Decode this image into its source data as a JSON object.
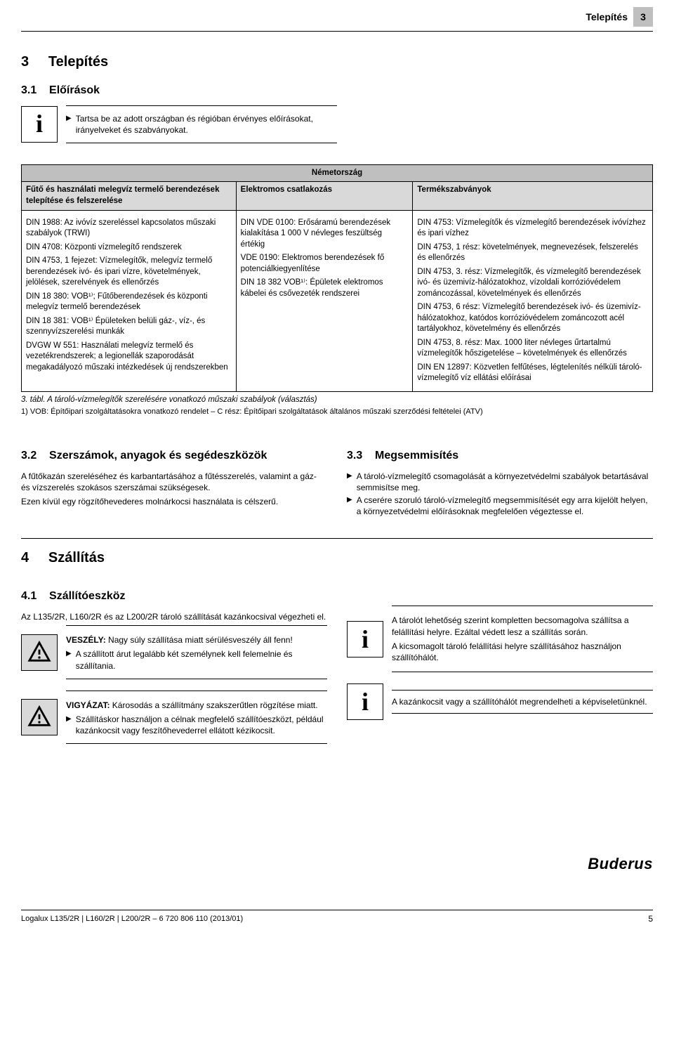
{
  "header": {
    "category": "Telepítés",
    "page": "3"
  },
  "section_3": {
    "num": "3",
    "title": "Telepítés"
  },
  "section_3_1": {
    "num": "3.1",
    "title": "Előírások",
    "info": "Tartsa be az adott országban és régióban érvényes előírásokat, irányelveket és szabványokat."
  },
  "table": {
    "country": "Németország",
    "columns": [
      "Fűtő és használati melegvíz termelő berendezések telepítése és felszerelése",
      "Elektromos csatlakozás",
      "Termékszabványok"
    ],
    "row1_col1": "DIN 1988: Az ivóvíz szereléssel kapcsolatos műszaki szabályok (TRWI)\nDIN 4708: Központi vízmelegítő rendszerek\nDIN 4753, 1 fejezet: Vízmelegítők, melegvíz termelő berendezések ivó- és ipari vízre, követelmények, jelölések, szerelvények és ellenőrzés\nDIN 18 380: VOB¹⁾; Fűtőberendezések és központi melegvíz termelő berendezések\nDIN 18 381: VOB¹⁾ Épületeken belüli gáz-, víz-, és szennyvízszerelési munkák\nDVGW W 551: Használati melegvíz termelő és vezetékrendszerek; a legionellák szaporodását megakadályozó műszaki intézkedések új rendszerekben",
    "row1_col2": "DIN VDE 0100: Erősáramú berendezések kialakítása 1 000 V névleges feszültség értékig\nVDE 0190: Elektromos berendezések fő potenciálkiegyenlítése\nDIN 18 382 VOB¹⁾: Épületek elektromos kábelei és csővezeték rendszerei",
    "row1_col3": "DIN 4753: Vízmelegítők és vízmelegítő berendezések ivóvízhez és ipari vízhez\nDIN 4753, 1 rész: követelmények, megnevezések, felszerelés és ellenőrzés\nDIN 4753, 3. rész: Vízmelegítők, és vízmelegítő berendezések ivó- és üzemivíz-hálózatokhoz, vízoldali korrózióvédelem zománcozással, követelmények és ellenőrzés\nDIN 4753, 6 rész: Vízmelegítő berendezések ivó- és üzemivíz-hálózatokhoz, katódos korrózióvédelem zománcozott acél tartályokhoz, követelmény és ellenőrzés\nDIN 4753, 8. rész: Max. 1000 liter névleges űrtartalmú vízmelegítők hőszigetelése – követelmények és ellenőrzés\nDIN EN 12897: Közvetlen felfűtéses, légtelenítés nélküli tároló-vízmelegítő víz ellátási előírásai",
    "caption": "3. tábl.  A tároló-vízmelegítők szerelésére vonatkozó műszaki szabályok (választás)",
    "footnote": "1) VOB: Építőipari szolgáltatásokra vonatkozó rendelet – C rész: Építőipari szolgáltatások általános műszaki szerződési feltételei (ATV)"
  },
  "section_3_2": {
    "num": "3.2",
    "title": "Szerszámok, anyagok és segédeszközök",
    "p1": "A fűtőkazán szereléséhez és karbantartásához a fűtésszerelés, valamint a gáz- és vízszerelés szokásos szerszámai szükségesek.",
    "p2": "Ezen kívül egy rögzítőhevederes molnárkocsi használata is célszerű."
  },
  "section_3_3": {
    "num": "3.3",
    "title": "Megsemmisítés",
    "b1": "A tároló-vízmelegítő csomagolását a környezetvédelmi szabályok betartásával semmisítse meg.",
    "b2": "A cserére szoruló tároló-vízmelegítő megsemmisítését egy arra kijelölt helyen, a környezetvédelmi előírásoknak megfelelően végeztesse el."
  },
  "section_4": {
    "num": "4",
    "title": "Szállítás"
  },
  "section_4_1": {
    "num": "4.1",
    "title": "Szállítóeszköz",
    "intro": "Az L135/2R, L160/2R és az L200/2R tároló szállítását kazánkocsival végezheti el.",
    "danger_label": "VESZÉLY:",
    "danger_text": "Nagy súly szállítása miatt sérülésveszély áll fenn!",
    "danger_bullet": "A szállított árut legalább két személynek kell felemelnie és szállítania.",
    "caution_label": "VIGYÁZAT:",
    "caution_text": "Károsodás a szállítmány szakszerűtlen rögzítése miatt.",
    "caution_bullet": "Szállításkor használjon a célnak megfelelő szállítóeszközt, például kazánkocsit vagy feszítőhevederrel ellátott kézikocsit.",
    "info1": "A tárolót lehetőség szerint kompletten becsomagolva szállítsa a felállítási helyre. Ezáltal védett lesz a szállítás során.\nA kicsomagolt tároló felállítási helyre szállításához használjon szállítóhálót.",
    "info2": "A kazánkocsit vagy a szállítóhálót megrendelheti a képviseletünknél."
  },
  "footer": {
    "left": "Logalux L135/2R | L160/2R | L200/2R – 6 720 806 110 (2013/01)",
    "brand": "Buderus",
    "page": "5"
  }
}
